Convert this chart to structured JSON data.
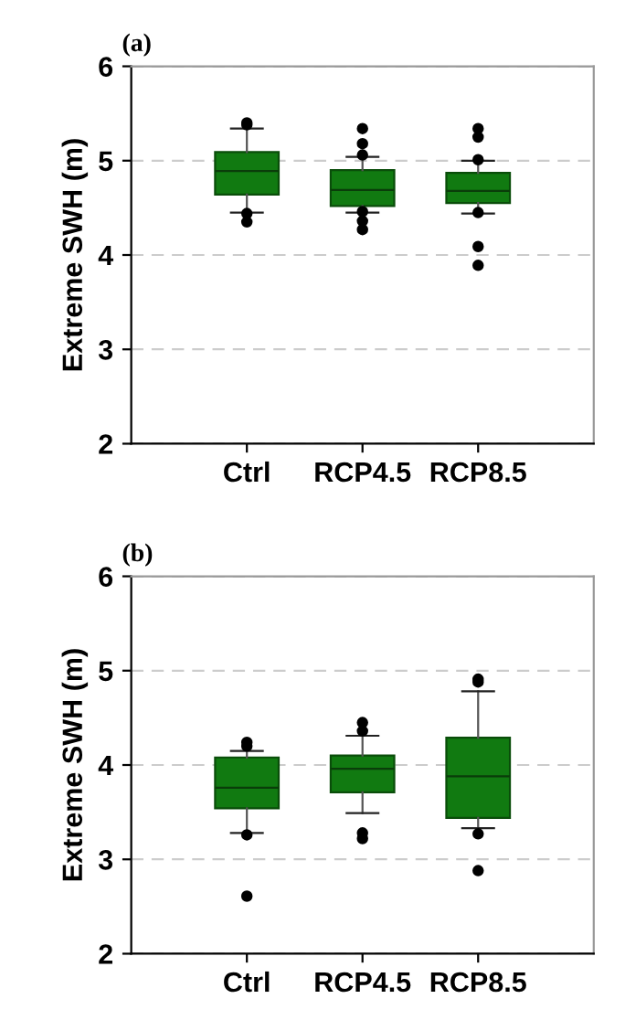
{
  "chart_data": [
    {
      "type": "box",
      "title": "(a)",
      "ylabel": "Extreme SWH (m)",
      "categories": [
        "Ctrl",
        "RCP4.5",
        "RCP8.5"
      ],
      "color": "#117a11",
      "ylim": [
        2,
        6
      ],
      "yticks": [
        2,
        3,
        4,
        5,
        6
      ],
      "grid": "y",
      "boxes": [
        {
          "low": 4.45,
          "q1": 4.64,
          "median": 4.89,
          "q3": 5.09,
          "high": 5.34,
          "outliers": [
            5.4,
            5.38,
            4.44,
            4.35
          ]
        },
        {
          "low": 4.45,
          "q1": 4.52,
          "median": 4.69,
          "q3": 4.9,
          "high": 5.04,
          "outliers": [
            5.34,
            5.18,
            5.06,
            4.46,
            4.36,
            4.27
          ]
        },
        {
          "low": 4.44,
          "q1": 4.55,
          "median": 4.68,
          "q3": 4.87,
          "high": 5.0,
          "outliers": [
            5.34,
            5.25,
            5.01,
            4.45,
            4.09,
            3.89
          ]
        }
      ]
    },
    {
      "type": "box",
      "title": "(b)",
      "ylabel": "Extreme SWH (m)",
      "categories": [
        "Ctrl",
        "RCP4.5",
        "RCP8.5"
      ],
      "color": "#117a11",
      "ylim": [
        2,
        6
      ],
      "yticks": [
        2,
        3,
        4,
        5,
        6
      ],
      "grid": "y",
      "boxes": [
        {
          "low": 3.28,
          "q1": 3.54,
          "median": 3.76,
          "q3": 4.08,
          "high": 4.15,
          "outliers": [
            4.24,
            4.2,
            3.26,
            2.61
          ]
        },
        {
          "low": 3.49,
          "q1": 3.71,
          "median": 3.96,
          "q3": 4.1,
          "high": 4.31,
          "outliers": [
            4.45,
            4.36,
            3.28,
            3.22
          ]
        },
        {
          "low": 3.33,
          "q1": 3.44,
          "median": 3.88,
          "q3": 4.29,
          "high": 4.78,
          "outliers": [
            4.91,
            4.88,
            3.27,
            2.88
          ]
        }
      ]
    }
  ]
}
